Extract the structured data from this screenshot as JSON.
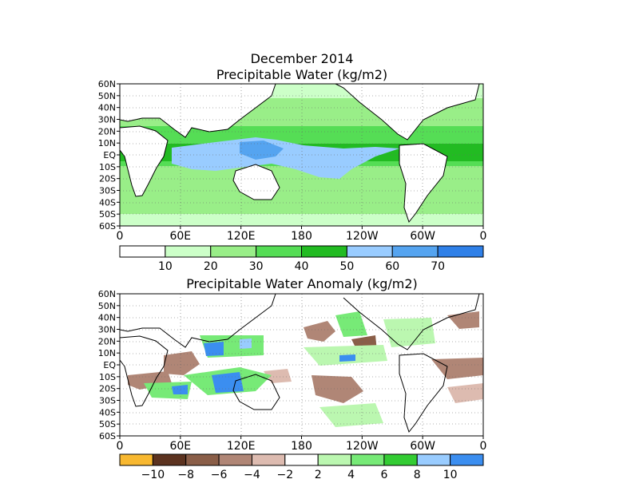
{
  "top_panel": {
    "title_line1": "December 2014",
    "title_line2": "Precipitable Water (kg/m2)",
    "lat_labels": [
      "60N",
      "50N",
      "40N",
      "30N",
      "20N",
      "10N",
      "EQ",
      "10S",
      "20S",
      "30S",
      "40S",
      "50S",
      "60S"
    ],
    "lon_labels": [
      "0",
      "60E",
      "120E",
      "180",
      "120W",
      "60W",
      "0"
    ],
    "colorbar": {
      "colors": [
        "#ffffff",
        "#ccffc8",
        "#99ee88",
        "#55dd55",
        "#22bb22",
        "#99ccff",
        "#55a4f0",
        "#2f80e8"
      ],
      "labels": [
        "10",
        "20",
        "30",
        "40",
        "50",
        "60",
        "70"
      ]
    }
  },
  "bottom_panel": {
    "title": "Precipitable Water Anomaly (kg/m2)",
    "lat_labels": [
      "60N",
      "50N",
      "40N",
      "30N",
      "20N",
      "10N",
      "EQ",
      "10S",
      "20S",
      "30S",
      "40S",
      "50S",
      "60S"
    ],
    "lon_labels": [
      "0",
      "60E",
      "120E",
      "180",
      "120W",
      "60W",
      "0"
    ],
    "colorbar": {
      "colors": [
        "#f8b830",
        "#5c3320",
        "#8a5e48",
        "#b08676",
        "#ddbbb0",
        "#ffffff",
        "#bbf7b0",
        "#77ea77",
        "#33cc33",
        "#99ccff",
        "#3b8ef0"
      ],
      "labels": [
        "−10",
        "−8",
        "−6",
        "−4",
        "−2",
        "2",
        "4",
        "6",
        "8",
        "10"
      ]
    }
  }
}
